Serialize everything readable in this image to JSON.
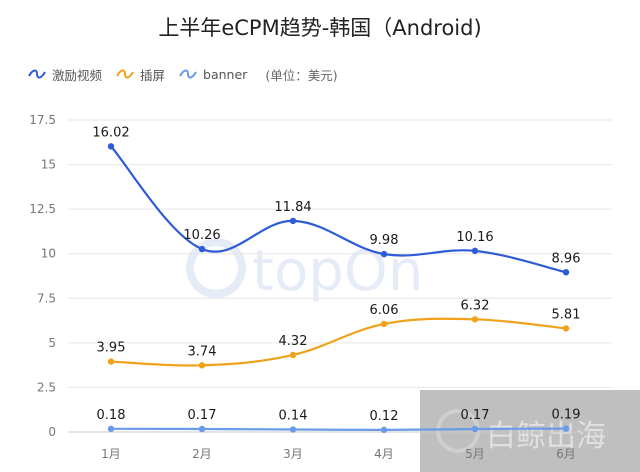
{
  "chart_data": {
    "type": "line",
    "title": "上半年eCPM趋势-韩国（Android)",
    "unit_note": "(单位：美元)",
    "categories": [
      "1月",
      "2月",
      "3月",
      "4月",
      "5月",
      "6月"
    ],
    "ylim": [
      0,
      17.5
    ],
    "y_ticks": [
      0,
      2.5,
      5,
      7.5,
      10,
      12.5,
      15,
      17.5
    ],
    "y_tick_labels": [
      "0",
      "2.5",
      "5",
      "7.5",
      "10",
      "12.5",
      "15",
      "17.5"
    ],
    "grid": true,
    "legend_position": "top-left",
    "series": [
      {
        "name": "激励视频",
        "color": "#2f5bd6",
        "values": [
          16.02,
          10.26,
          11.84,
          9.98,
          10.16,
          8.96
        ],
        "labels": [
          "16.02",
          "10.26",
          "11.84",
          "9.98",
          "10.16",
          "8.96"
        ]
      },
      {
        "name": "插屏",
        "color": "#f0a21a",
        "values": [
          3.95,
          3.74,
          4.32,
          6.06,
          6.32,
          5.81
        ],
        "labels": [
          "3.95",
          "3.74",
          "4.32",
          "6.06",
          "6.32",
          "5.81"
        ]
      },
      {
        "name": "banner",
        "color": "#6a9ae8",
        "values": [
          0.18,
          0.17,
          0.14,
          0.12,
          0.17,
          0.19
        ],
        "labels": [
          "0.18",
          "0.17",
          "0.14",
          "0.12",
          "0.17",
          "0.19"
        ]
      }
    ]
  },
  "watermarks": {
    "center": "topOn",
    "corner": "白鲸出海"
  }
}
